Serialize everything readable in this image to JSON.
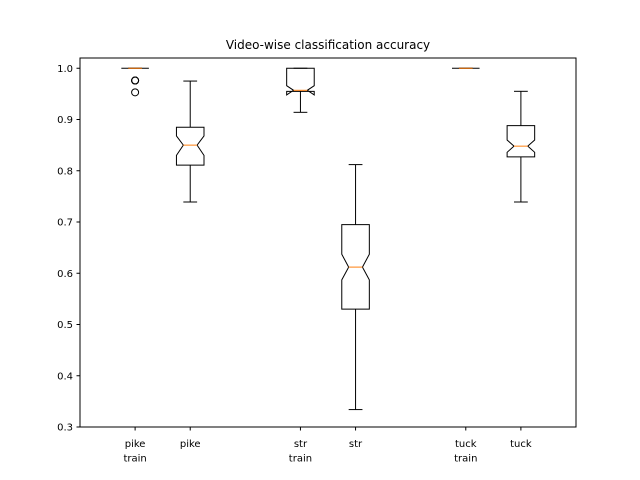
{
  "chart_data": {
    "type": "boxplot",
    "title": "Video-wise classification accuracy",
    "xlabel": "",
    "ylabel": "",
    "ylim": [
      0.3,
      1.02
    ],
    "yticks": [
      0.3,
      0.4,
      0.5,
      0.6,
      0.7,
      0.8,
      0.9,
      1.0
    ],
    "ytick_labels": [
      "0.3",
      "0.4",
      "0.5",
      "0.6",
      "0.7",
      "0.8",
      "0.9",
      "1.0"
    ],
    "categories": [
      "pike\ntrain",
      "pike",
      "str\ntrain",
      "str",
      "tuck\ntrain",
      "tuck"
    ],
    "category_positions": [
      1,
      2,
      4,
      5,
      7,
      8
    ],
    "xlim": [
      0,
      9
    ],
    "notched": true,
    "grid": false,
    "boxes": [
      {
        "label": "pike\ntrain",
        "whisker_low": 1.0,
        "q1": 1.0,
        "median": 1.0,
        "q3": 1.0,
        "whisker_high": 1.0,
        "notch_low": 1.0,
        "notch_high": 1.0,
        "outliers": [
          0.976,
          0.976,
          0.976,
          0.953
        ]
      },
      {
        "label": "pike",
        "whisker_low": 0.739,
        "q1": 0.811,
        "median": 0.85,
        "q3": 0.885,
        "whisker_high": 0.975,
        "notch_low": 0.83,
        "notch_high": 0.868
      },
      {
        "label": "str\ntrain",
        "whisker_low": 0.914,
        "q1": 0.955,
        "median": 0.957,
        "q3": 1.0,
        "whisker_high": 1.0,
        "notch_low": 0.948,
        "notch_high": 0.966,
        "outliers": []
      },
      {
        "label": "str",
        "whisker_low": 0.334,
        "q1": 0.53,
        "median": 0.612,
        "q3": 0.695,
        "whisker_high": 0.812,
        "notch_low": 0.587,
        "notch_high": 0.637
      },
      {
        "label": "tuck\ntrain",
        "whisker_low": 1.0,
        "q1": 1.0,
        "median": 1.0,
        "q3": 1.0,
        "whisker_high": 1.0,
        "notch_low": 1.0,
        "notch_high": 1.0,
        "outliers": []
      },
      {
        "label": "tuck",
        "whisker_low": 0.739,
        "q1": 0.827,
        "median": 0.848,
        "q3": 0.888,
        "whisker_high": 0.955,
        "notch_low": 0.836,
        "notch_high": 0.86
      }
    ],
    "colors": {
      "box": "#000000",
      "median": "#ff7f0e",
      "outlier": "#000000",
      "background": "#ffffff"
    }
  }
}
